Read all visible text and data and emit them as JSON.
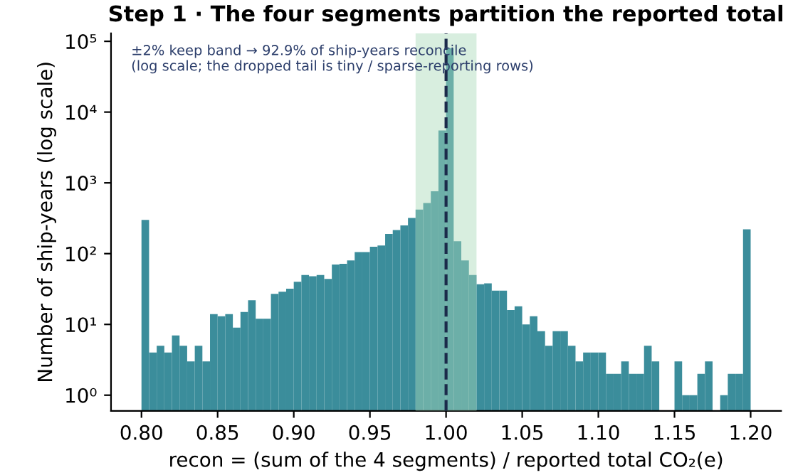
{
  "chart_data": {
    "type": "histogram",
    "title": "Step 1 · The four segments partition the reported total",
    "xlabel": "recon = (sum of the 4 segments) / reported total CO₂(e)",
    "ylabel": "Number of ship-years (log scale)",
    "bins": [
      0.8,
      0.805,
      0.81,
      0.815,
      0.82,
      0.825,
      0.83,
      0.835,
      0.84,
      0.845,
      0.85,
      0.855,
      0.86,
      0.865,
      0.87,
      0.875,
      0.88,
      0.885,
      0.89,
      0.895,
      0.9,
      0.905,
      0.91,
      0.915,
      0.92,
      0.925,
      0.93,
      0.935,
      0.94,
      0.945,
      0.95,
      0.955,
      0.96,
      0.965,
      0.97,
      0.975,
      0.98,
      0.985,
      0.99,
      0.995,
      1.0,
      1.005,
      1.01,
      1.015,
      1.02,
      1.025,
      1.03,
      1.035,
      1.04,
      1.045,
      1.05,
      1.055,
      1.06,
      1.065,
      1.07,
      1.075,
      1.08,
      1.085,
      1.09,
      1.095,
      1.1,
      1.105,
      1.11,
      1.115,
      1.12,
      1.125,
      1.13,
      1.135,
      1.14,
      1.145,
      1.15,
      1.155,
      1.16,
      1.165,
      1.17,
      1.175,
      1.18,
      1.185,
      1.19,
      1.195,
      1.2
    ],
    "values": [
      300,
      4,
      5,
      4,
      7,
      5,
      3,
      5,
      3,
      14,
      13,
      14,
      9,
      15,
      22,
      12,
      12,
      27,
      29,
      32,
      40,
      50,
      48,
      50,
      44,
      70,
      72,
      80,
      105,
      105,
      125,
      130,
      190,
      215,
      250,
      320,
      420,
      520,
      760,
      5500,
      80000,
      150,
      80,
      50,
      37,
      38,
      30,
      30,
      16,
      18,
      10,
      13,
      8,
      5,
      8,
      8,
      5,
      3,
      4,
      4,
      4,
      2,
      2,
      3,
      2,
      2,
      5,
      3,
      null,
      null,
      3,
      1,
      1,
      2,
      3,
      null,
      1,
      2,
      2,
      220
    ],
    "color": "#3b8d9b",
    "log": "y",
    "xlim": [
      0.78,
      1.22
    ],
    "xticks": [
      {
        "value": 0.8,
        "label": "0.80"
      },
      {
        "value": 0.85,
        "label": "0.85"
      },
      {
        "value": 0.9,
        "label": "0.90"
      },
      {
        "value": 0.95,
        "label": "0.95"
      },
      {
        "value": 1.0,
        "label": "1.00"
      },
      {
        "value": 1.05,
        "label": "1.05"
      },
      {
        "value": 1.1,
        "label": "1.10"
      },
      {
        "value": 1.15,
        "label": "1.15"
      },
      {
        "value": 1.2,
        "label": "1.20"
      }
    ],
    "ylim": [
      0.6,
      130000
    ],
    "yticks": [
      {
        "value": 1,
        "label": "10⁰"
      },
      {
        "value": 10,
        "label": "10¹"
      },
      {
        "value": 100,
        "label": "10²"
      },
      {
        "value": 1000,
        "label": "10³"
      },
      {
        "value": 10000,
        "label": "10⁴"
      },
      {
        "value": 100000,
        "label": "10⁵"
      }
    ],
    "bands": [
      {
        "axis": "x",
        "from": 0.98,
        "to": 1.02,
        "color": "#a8dab9"
      }
    ],
    "ref_lines": [
      {
        "axis": "x",
        "value": 1.0,
        "color": "#1b2a4a",
        "line_style": "dashed"
      }
    ],
    "annotations": [
      "±2% keep band → 92.9% of ship-years reconcile\n(log scale; the dropped tail is tiny / sparse-reporting rows)"
    ],
    "grid": false
  }
}
